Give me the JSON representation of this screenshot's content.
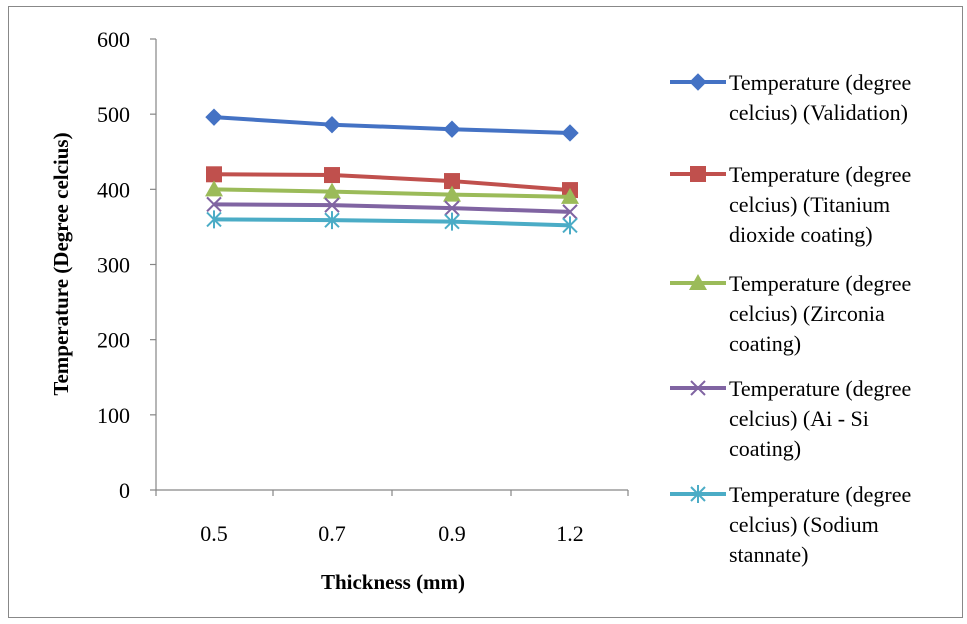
{
  "chart_data": {
    "type": "line",
    "title": "",
    "xlabel": "Thickness (mm)",
    "ylabel": "Temperature (Degree celcius)",
    "categories": [
      "0.5",
      "0.7",
      "0.9",
      "1.2"
    ],
    "ylim": [
      0,
      600
    ],
    "yticks": [
      "0",
      "100",
      "200",
      "300",
      "400",
      "500",
      "600"
    ],
    "grid": false,
    "legend_position": "right",
    "series": [
      {
        "name": "Temperature (degree celcius) (Validation)",
        "legend_lines": [
          "Temperature (degree",
          "celcius) (Validation)"
        ],
        "values": [
          496,
          486,
          480,
          475
        ],
        "color": "#4472C4",
        "marker": "diamond"
      },
      {
        "name": "Temperature (degree celcius) (Titanium dioxide coating)",
        "legend_lines": [
          "Temperature (degree",
          "celcius) (Titanium",
          "dioxide coating)"
        ],
        "values": [
          420,
          419,
          411,
          399
        ],
        "color": "#C0504D",
        "marker": "square"
      },
      {
        "name": "Temperature (degree celcius) (Zirconia coating)",
        "legend_lines": [
          "Temperature (degree",
          "celcius) (Zirconia",
          "coating)"
        ],
        "values": [
          400,
          397,
          393,
          390
        ],
        "color": "#9BBB59",
        "marker": "triangle"
      },
      {
        "name": "Temperature (degree celcius) (Ai - Si coating)",
        "legend_lines": [
          "Temperature (degree",
          "celcius) (Ai - Si",
          "coating)"
        ],
        "values": [
          380,
          379,
          375,
          370
        ],
        "color": "#8064A2",
        "marker": "x"
      },
      {
        "name": "Temperature (degree celcius) (Sodium stannate)",
        "legend_lines": [
          "Temperature (degree",
          "celcius) (Sodium",
          "stannate)"
        ],
        "values": [
          360,
          359,
          357,
          352
        ],
        "color": "#4BACC6",
        "marker": "star"
      }
    ]
  }
}
